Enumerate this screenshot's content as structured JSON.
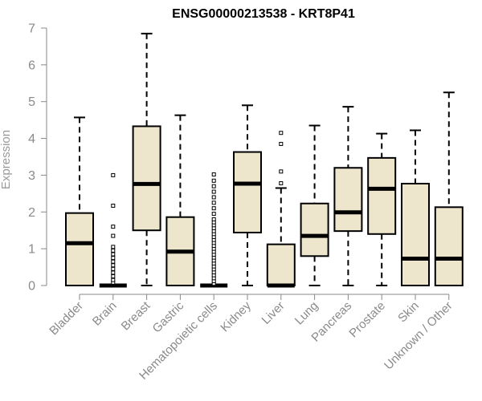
{
  "chart_data": {
    "type": "boxplot",
    "title": "ENSG00000213538 - KRT8P41",
    "ylabel": "Expression",
    "xlabel": "",
    "ylim": [
      0,
      7
    ],
    "yticks": [
      0,
      1,
      2,
      3,
      4,
      5,
      6,
      7
    ],
    "grid": false,
    "categories": [
      "Bladder",
      "Brain",
      "Breast",
      "Gastric",
      "Hematopoietic cells",
      "Kidney",
      "Liver",
      "Lung",
      "Pancreas",
      "Prostate",
      "Skin",
      "Unknown / Other"
    ],
    "boxes": [
      {
        "category": "Bladder",
        "whisker_low": 0,
        "q1": 0,
        "median": 1.15,
        "q3": 1.97,
        "whisker_high": 4.57,
        "outliers": []
      },
      {
        "category": "Brain",
        "whisker_low": 0,
        "q1": 0,
        "median": 0,
        "q3": 0,
        "whisker_high": 0,
        "outliers": [
          0.08,
          0.15,
          0.25,
          0.35,
          0.45,
          0.55,
          0.65,
          0.75,
          0.85,
          0.95,
          1.05,
          1.35,
          1.6,
          2.17,
          3.0
        ]
      },
      {
        "category": "Breast",
        "whisker_low": 0,
        "q1": 1.5,
        "median": 2.76,
        "q3": 4.33,
        "whisker_high": 6.85,
        "outliers": []
      },
      {
        "category": "Gastric",
        "whisker_low": 0,
        "q1": 0,
        "median": 0.92,
        "q3": 1.86,
        "whisker_high": 4.63,
        "outliers": []
      },
      {
        "category": "Hematopoietic cells",
        "whisker_low": 0,
        "q1": 0,
        "median": 0,
        "q3": 0,
        "whisker_high": 0,
        "outliers": [
          0.05,
          0.12,
          0.2,
          0.28,
          0.36,
          0.44,
          0.52,
          0.6,
          0.68,
          0.76,
          0.84,
          0.92,
          1.0,
          1.08,
          1.16,
          1.24,
          1.32,
          1.4,
          1.48,
          1.56,
          1.64,
          1.72,
          1.8,
          1.95,
          2.1,
          2.25,
          2.4,
          2.55,
          2.7,
          2.85,
          3.02
        ]
      },
      {
        "category": "Kidney",
        "whisker_low": 0,
        "q1": 1.44,
        "median": 2.77,
        "q3": 3.63,
        "whisker_high": 4.9,
        "outliers": []
      },
      {
        "category": "Liver",
        "whisker_low": 0,
        "q1": 0,
        "median": 0,
        "q3": 1.12,
        "whisker_high": 2.65,
        "outliers": [
          2.78,
          3.1,
          3.85,
          4.15
        ]
      },
      {
        "category": "Lung",
        "whisker_low": 0,
        "q1": 0.8,
        "median": 1.35,
        "q3": 2.23,
        "whisker_high": 4.35,
        "outliers": []
      },
      {
        "category": "Pancreas",
        "whisker_low": 0,
        "q1": 1.48,
        "median": 1.99,
        "q3": 3.2,
        "whisker_high": 4.86,
        "outliers": []
      },
      {
        "category": "Prostate",
        "whisker_low": 0,
        "q1": 1.4,
        "median": 2.63,
        "q3": 3.47,
        "whisker_high": 4.13,
        "outliers": []
      },
      {
        "category": "Skin",
        "whisker_low": 0,
        "q1": 0,
        "median": 0.73,
        "q3": 2.77,
        "whisker_high": 4.22,
        "outliers": []
      },
      {
        "category": "Unknown / Other",
        "whisker_low": 0,
        "q1": 0,
        "median": 0.73,
        "q3": 2.13,
        "whisker_high": 5.25,
        "outliers": []
      }
    ],
    "colors": {
      "box_fill": "#ede6cc",
      "box_stroke": "#000000",
      "axis": "#888888",
      "text": "#8a8a8a"
    }
  }
}
